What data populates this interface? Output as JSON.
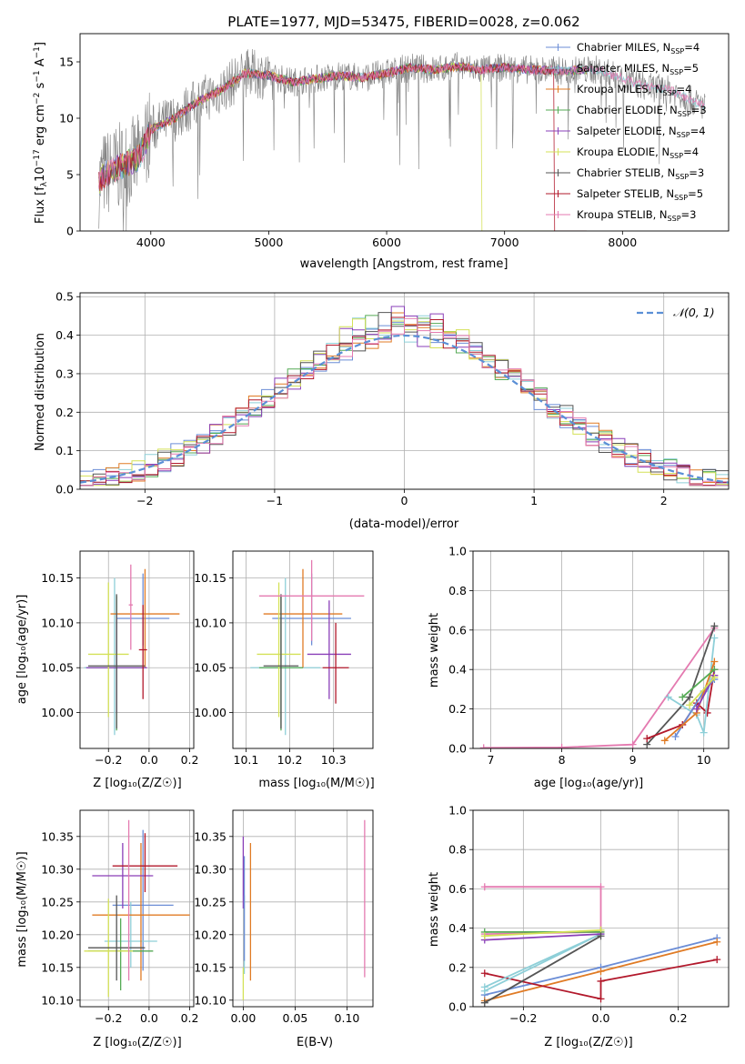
{
  "figure_title": "PLATE=1977, MJD=53475, FIBERID=0028, z=0.062",
  "colors": {
    "Chabrier MILES": "#6b8dd6",
    "Salpeter MILES": "#8ecfd8",
    "Kroupa MILES": "#e07b25",
    "Chabrier ELODIE": "#55aa55",
    "Salpeter ELODIE": "#8a3fb8",
    "Kroupa ELODIE": "#d4e157",
    "Chabrier STELIB": "#555555",
    "Salpeter STELIB": "#b2182b",
    "Kroupa STELIB": "#e47ab0",
    "data": "#808080",
    "normal": "#5a8fd6"
  },
  "labels": {
    "flux_ylabel": "Flux [f$_\\lambda$10$^{-17}$ erg cm$^{-2}$ s$^{-1}$ A$^{-1}$]",
    "flux_xlabel": "wavelength [Angstrom, rest frame]",
    "hist_ylabel": "Normed distribution",
    "hist_xlabel": "(data-model)/error",
    "hist_legend": "𝒩(0, 1)",
    "age_label": "age  [log₁₀(age/yr)]",
    "z_label": "Z [log₁₀(Z/Z☉)]",
    "mass_label": "mass [log₁₀(M/M☉)]",
    "ebv_label": "E(B-V)",
    "massweight_label": "mass weight",
    "age_x_label": "age  [log₁₀(age/yr)]"
  },
  "legend": [
    {
      "model": "Chabrier MILES",
      "nssp": "4"
    },
    {
      "model": "Salpeter MILES",
      "nssp": "5"
    },
    {
      "model": "Kroupa MILES",
      "nssp": "4"
    },
    {
      "model": "Chabrier ELODIE",
      "nssp": "3"
    },
    {
      "model": "Salpeter ELODIE",
      "nssp": "4"
    },
    {
      "model": "Kroupa ELODIE",
      "nssp": "4"
    },
    {
      "model": "Chabrier STELIB",
      "nssp": "3"
    },
    {
      "model": "Salpeter STELIB",
      "nssp": "5"
    },
    {
      "model": "Kroupa STELIB",
      "nssp": "3"
    }
  ],
  "chart_data": [
    {
      "id": "spectrum",
      "type": "line",
      "xlim": [
        3400,
        8900
      ],
      "ylim": [
        0,
        17.5
      ],
      "xticks": [
        4000,
        5000,
        6000,
        7000,
        8000
      ],
      "yticks": [
        0,
        5,
        10,
        15
      ],
      "continuum": [
        [
          3500,
          3
        ],
        [
          3600,
          5
        ],
        [
          3700,
          5.5
        ],
        [
          3800,
          6
        ],
        [
          3900,
          6.5
        ],
        [
          4000,
          9
        ],
        [
          4200,
          10
        ],
        [
          4400,
          11.5
        ],
        [
          4600,
          12.5
        ],
        [
          4800,
          14
        ],
        [
          5000,
          13.8
        ],
        [
          5200,
          13.2
        ],
        [
          5400,
          13.5
        ],
        [
          5600,
          13.8
        ],
        [
          5800,
          13.6
        ],
        [
          6000,
          14
        ],
        [
          6200,
          14.5
        ],
        [
          6400,
          14.3
        ],
        [
          6600,
          14.6
        ],
        [
          6800,
          14.3
        ],
        [
          7000,
          14.5
        ],
        [
          7200,
          14.3
        ],
        [
          7500,
          14.2
        ],
        [
          7800,
          14.3
        ],
        [
          8000,
          13.5
        ],
        [
          8200,
          12.8
        ],
        [
          8400,
          12.5
        ],
        [
          8700,
          11
        ]
      ],
      "model_cutoffs": [
        {
          "model": "Kroupa ELODIE",
          "x": 6800
        },
        {
          "model": "Salpeter STELIB",
          "x": 7420
        }
      ],
      "grid": false
    },
    {
      "id": "residual_hist",
      "type": "histogram",
      "xlim": [
        -2.5,
        2.5
      ],
      "ylim": [
        0,
        0.51
      ],
      "xticks": [
        -2,
        -1,
        0,
        1,
        2
      ],
      "yticks": [
        0,
        0.1,
        0.2,
        0.3,
        0.4,
        0.5
      ],
      "bin_width": 0.1,
      "normal": {
        "mean": 0,
        "sigma": 1
      },
      "grid": true
    },
    {
      "id": "age_vs_Z",
      "type": "errorbar",
      "xlim": [
        -0.34,
        0.22
      ],
      "ylim": [
        9.96,
        10.18
      ],
      "xticks": [
        -0.2,
        0,
        0.2
      ],
      "yticks": [
        10.0,
        10.05,
        10.1,
        10.15
      ],
      "points": [
        {
          "model": "Chabrier MILES",
          "x": -0.03,
          "xerr": [
            0.13,
            0.13
          ],
          "y": 10.105,
          "yerr": [
            0.03,
            0.05
          ]
        },
        {
          "model": "Salpeter MILES",
          "x": -0.17,
          "xerr": [
            0.15,
            0.15
          ],
          "y": 10.05,
          "yerr": [
            0.075,
            0.1
          ]
        },
        {
          "model": "Kroupa MILES",
          "x": -0.02,
          "xerr": [
            0.17,
            0.17
          ],
          "y": 10.11,
          "yerr": [
            0.06,
            0.05
          ]
        },
        {
          "model": "Chabrier ELODIE",
          "x": -0.16,
          "xerr": [
            0.14,
            0.14
          ],
          "y": 10.05,
          "yerr": [
            0.07,
            0.08
          ]
        },
        {
          "model": "Salpeter ELODIE",
          "x": -0.16,
          "xerr": [
            0.15,
            0.15
          ],
          "y": 10.05,
          "yerr": [
            0.05,
            0.06
          ]
        },
        {
          "model": "Kroupa ELODIE",
          "x": -0.2,
          "xerr": [
            0.1,
            0.1
          ],
          "y": 10.065,
          "yerr": [
            0.07,
            0.08
          ]
        },
        {
          "model": "Chabrier STELIB",
          "x": -0.16,
          "xerr": [
            0.14,
            0.14
          ],
          "y": 10.052,
          "yerr": [
            0.07,
            0.08
          ]
        },
        {
          "model": "Salpeter STELIB",
          "x": -0.03,
          "xerr": [
            0.02,
            0.02
          ],
          "y": 10.07,
          "yerr": [
            0.055,
            0.05
          ]
        },
        {
          "model": "Kroupa STELIB",
          "x": -0.09,
          "xerr": [
            0.01,
            0.01
          ],
          "y": 10.12,
          "yerr": [
            0.05,
            0.045
          ]
        }
      ]
    },
    {
      "id": "age_vs_mass",
      "type": "errorbar",
      "xlim": [
        10.07,
        10.39
      ],
      "ylim": [
        9.96,
        10.18
      ],
      "xticks": [
        10.1,
        10.2,
        10.3
      ],
      "yticks": [
        10.0,
        10.05,
        10.1,
        10.15
      ],
      "points": [
        {
          "model": "Chabrier MILES",
          "x": 10.25,
          "xerr": [
            0.09,
            0.09
          ],
          "y": 10.105,
          "yerr": [
            0.03,
            0.05
          ]
        },
        {
          "model": "Salpeter MILES",
          "x": 10.19,
          "xerr": [
            0.08,
            0.08
          ],
          "y": 10.05,
          "yerr": [
            0.075,
            0.1
          ]
        },
        {
          "model": "Kroupa MILES",
          "x": 10.23,
          "xerr": [
            0.09,
            0.09
          ],
          "y": 10.11,
          "yerr": [
            0.06,
            0.05
          ]
        },
        {
          "model": "Chabrier ELODIE",
          "x": 10.18,
          "xerr": [
            0.05,
            0.05
          ],
          "y": 10.05,
          "yerr": [
            0.07,
            0.08
          ]
        },
        {
          "model": "Salpeter ELODIE",
          "x": 10.29,
          "xerr": [
            0.05,
            0.05
          ],
          "y": 10.065,
          "yerr": [
            0.05,
            0.06
          ]
        },
        {
          "model": "Kroupa ELODIE",
          "x": 10.175,
          "xerr": [
            0.05,
            0.05
          ],
          "y": 10.065,
          "yerr": [
            0.07,
            0.08
          ]
        },
        {
          "model": "Chabrier STELIB",
          "x": 10.18,
          "xerr": [
            0.04,
            0.04
          ],
          "y": 10.052,
          "yerr": [
            0.07,
            0.08
          ]
        },
        {
          "model": "Salpeter STELIB",
          "x": 10.305,
          "xerr": [
            0.03,
            0.03
          ],
          "y": 10.05,
          "yerr": [
            0.04,
            0.05
          ]
        },
        {
          "model": "Kroupa STELIB",
          "x": 10.25,
          "xerr": [
            0.12,
            0.12
          ],
          "y": 10.13,
          "yerr": [
            0.05,
            0.04
          ]
        }
      ]
    },
    {
      "id": "massweight_vs_age",
      "type": "line",
      "xlim": [
        6.75,
        10.35
      ],
      "ylim": [
        0,
        1.0
      ],
      "xticks": [
        7,
        8,
        9,
        10
      ],
      "yticks": [
        0,
        0.2,
        0.4,
        0.6,
        0.8,
        1.0
      ],
      "series": [
        {
          "model": "Kroupa STELIB",
          "x": [
            6.9,
            8.0,
            9.0,
            10.15
          ],
          "y": [
            0.003,
            0.005,
            0.02,
            0.61
          ]
        },
        {
          "model": "Chabrier STELIB",
          "x": [
            9.2,
            9.8,
            10.15
          ],
          "y": [
            0.02,
            0.26,
            0.62
          ]
        },
        {
          "model": "Salpeter STELIB",
          "x": [
            9.2,
            9.7,
            9.9,
            10.05,
            10.15
          ],
          "y": [
            0.05,
            0.12,
            0.23,
            0.18,
            0.4
          ]
        },
        {
          "model": "Salpeter MILES",
          "x": [
            9.5,
            9.9,
            10.0,
            10.15
          ],
          "y": [
            0.26,
            0.17,
            0.08,
            0.56
          ]
        },
        {
          "model": "Chabrier MILES",
          "x": [
            9.6,
            10.0,
            10.15
          ],
          "y": [
            0.06,
            0.29,
            0.35
          ]
        },
        {
          "model": "Kroupa MILES",
          "x": [
            9.45,
            9.9,
            10.15
          ],
          "y": [
            0.04,
            0.18,
            0.44
          ]
        },
        {
          "model": "Chabrier ELODIE",
          "x": [
            9.7,
            10.15
          ],
          "y": [
            0.26,
            0.4
          ]
        },
        {
          "model": "Salpeter ELODIE",
          "x": [
            9.9,
            10.15
          ],
          "y": [
            0.2,
            0.37
          ]
        },
        {
          "model": "Kroupa ELODIE",
          "x": [
            9.8,
            10.15
          ],
          "y": [
            0.22,
            0.36
          ]
        }
      ]
    },
    {
      "id": "mass_vs_Z",
      "type": "errorbar",
      "xlim": [
        -0.34,
        0.22
      ],
      "ylim": [
        10.09,
        10.39
      ],
      "xticks": [
        -0.2,
        0,
        0.2
      ],
      "yticks": [
        10.1,
        10.15,
        10.2,
        10.25,
        10.3,
        10.35
      ],
      "points": [
        {
          "model": "Chabrier MILES",
          "x": -0.03,
          "xerr": [
            0.15,
            0.15
          ],
          "y": 10.245,
          "yerr": [
            0.1,
            0.115
          ]
        },
        {
          "model": "Salpeter MILES",
          "x": -0.09,
          "xerr": [
            0.13,
            0.13
          ],
          "y": 10.19,
          "yerr": [
            0.04,
            0.06
          ]
        },
        {
          "model": "Kroupa MILES",
          "x": -0.04,
          "xerr": [
            0.24,
            0.24
          ],
          "y": 10.23,
          "yerr": [
            0.1,
            0.11
          ]
        },
        {
          "model": "Chabrier ELODIE",
          "x": -0.14,
          "xerr": [
            0.16,
            0.16
          ],
          "y": 10.175,
          "yerr": [
            0.06,
            0.05
          ]
        },
        {
          "model": "Salpeter ELODIE",
          "x": -0.13,
          "xerr": [
            0.15,
            0.15
          ],
          "y": 10.29,
          "yerr": [
            0.05,
            0.05
          ]
        },
        {
          "model": "Kroupa ELODIE",
          "x": -0.2,
          "xerr": [
            0.12,
            0.12
          ],
          "y": 10.175,
          "yerr": [
            0.07,
            0.08
          ]
        },
        {
          "model": "Chabrier STELIB",
          "x": -0.16,
          "xerr": [
            0.14,
            0.14
          ],
          "y": 10.18,
          "yerr": [
            0.05,
            0.08
          ]
        },
        {
          "model": "Salpeter STELIB",
          "x": -0.02,
          "xerr": [
            0.16,
            0.16
          ],
          "y": 10.305,
          "yerr": [
            0.04,
            0.05
          ]
        },
        {
          "model": "Kroupa STELIB",
          "x": -0.1,
          "xerr": [
            0.0,
            0.0
          ],
          "y": 10.25,
          "yerr": [
            0.12,
            0.125
          ]
        }
      ]
    },
    {
      "id": "mass_vs_ebv",
      "type": "errorbar",
      "xlim": [
        -0.01,
        0.125
      ],
      "ylim": [
        10.09,
        10.39
      ],
      "xticks": [
        0,
        0.05,
        0.1
      ],
      "yticks": [
        10.1,
        10.15,
        10.2,
        10.25,
        10.3,
        10.35
      ],
      "points": [
        {
          "model": "Salpeter ELODIE",
          "x": 0.0,
          "xerr": [
            0,
            0
          ],
          "y": 10.29,
          "yerr": [
            0.05,
            0.06
          ]
        },
        {
          "model": "Salpeter MILES",
          "x": 0.001,
          "xerr": [
            0,
            0
          ],
          "y": 10.2,
          "yerr": [
            0.06,
            0.06
          ]
        },
        {
          "model": "Kroupa ELODIE",
          "x": 0.0,
          "xerr": [
            0,
            0
          ],
          "y": 10.12,
          "yerr": [
            0.02,
            0.03
          ]
        },
        {
          "model": "Chabrier MILES",
          "x": 0.001,
          "xerr": [
            0,
            0
          ],
          "y": 10.24,
          "yerr": [
            0.08,
            0.08
          ]
        },
        {
          "model": "Kroupa MILES",
          "x": 0.007,
          "xerr": [
            0,
            0
          ],
          "y": 10.23,
          "yerr": [
            0.1,
            0.11
          ]
        },
        {
          "model": "Kroupa STELIB",
          "x": 0.117,
          "xerr": [
            0,
            0
          ],
          "y": 10.255,
          "yerr": [
            0.12,
            0.12
          ]
        }
      ]
    },
    {
      "id": "massweight_vs_Z",
      "type": "line",
      "xlim": [
        -0.33,
        0.33
      ],
      "ylim": [
        0,
        1.0
      ],
      "xticks": [
        -0.2,
        0,
        0.2
      ],
      "yticks": [
        0,
        0.2,
        0.4,
        0.6,
        0.8,
        1.0
      ],
      "series": [
        {
          "model": "Kroupa STELIB",
          "x": [
            -0.3,
            0.0,
            0.0,
            -0.3
          ],
          "y": [
            0.61,
            0.61,
            0.38,
            0.37
          ]
        },
        {
          "model": "Chabrier MILES",
          "x": [
            -0.3,
            0.0,
            0.3
          ],
          "y": [
            0.06,
            0.2,
            0.35
          ]
        },
        {
          "model": "Kroupa MILES",
          "x": [
            -0.3,
            0.0,
            0.3
          ],
          "y": [
            0.03,
            0.18,
            0.33
          ]
        },
        {
          "model": "Salpeter STELIB",
          "x": [
            -0.3,
            0.0,
            0.0,
            0.3
          ],
          "y": [
            0.17,
            0.04,
            0.13,
            0.24
          ]
        },
        {
          "model": "Salpeter MILES",
          "x": [
            -0.3,
            0.0,
            -0.3
          ],
          "y": [
            0.08,
            0.37,
            0.1
          ]
        },
        {
          "model": "Chabrier ELODIE",
          "x": [
            -0.3,
            0.0
          ],
          "y": [
            0.38,
            0.38
          ]
        },
        {
          "model": "Salpeter ELODIE",
          "x": [
            -0.3,
            0.0
          ],
          "y": [
            0.34,
            0.37
          ]
        },
        {
          "model": "Kroupa ELODIE",
          "x": [
            -0.3,
            0.0
          ],
          "y": [
            0.36,
            0.39
          ]
        },
        {
          "model": "Chabrier STELIB",
          "x": [
            -0.3,
            0.0
          ],
          "y": [
            0.02,
            0.36
          ]
        }
      ]
    }
  ]
}
